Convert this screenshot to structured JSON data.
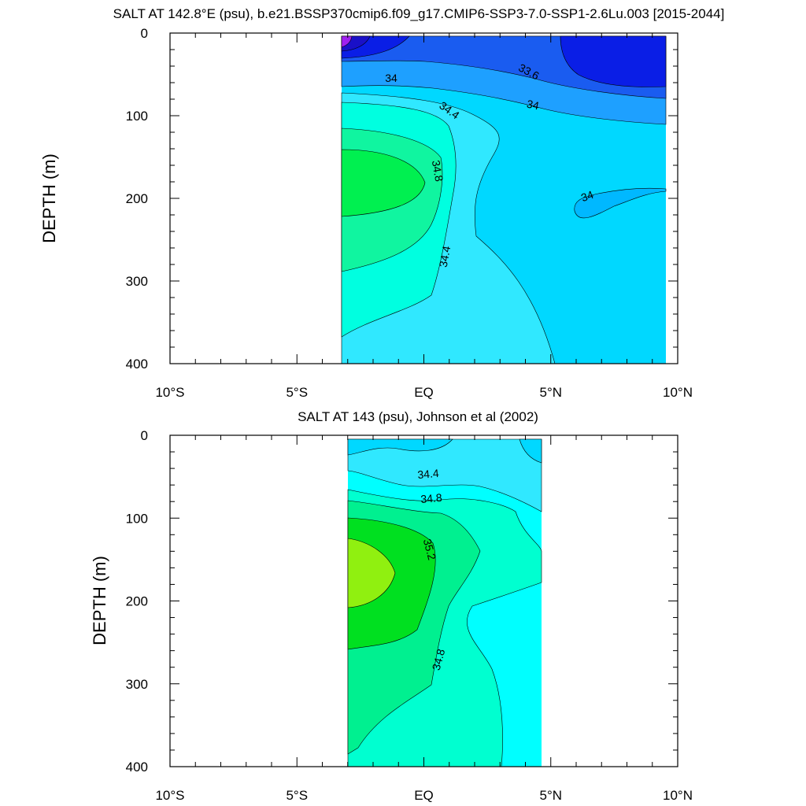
{
  "chart_data": [
    {
      "type": "contour",
      "title": "SALT AT 142.8°E (psu), b.e21.BSSP370cmip6.f09_g17.CMIP6-SSP3-7.0-SSP1-2.6Lu.003 [2015-2044]",
      "xlabel": "",
      "ylabel": "DEPTH (m)",
      "xlim": [
        -10,
        10
      ],
      "ylim": [
        400,
        0
      ],
      "xticks": [
        -10,
        -5,
        0,
        5,
        10
      ],
      "xticklabels": [
        "10°S",
        "5°S",
        "EQ",
        "5°N",
        "10°N"
      ],
      "yticks": [
        0,
        100,
        200,
        300,
        400
      ],
      "yticklabels": [
        "0",
        "100",
        "200",
        "300",
        "400"
      ],
      "data_extent": {
        "lon": [
          -3.1,
          10
        ],
        "depth": [
          5,
          400
        ]
      },
      "contour_labels": [
        "34",
        "33.6",
        "34.4",
        "34",
        "34.8",
        "34",
        "34.4"
      ],
      "color_levels": [
        {
          "range": "< 33.2",
          "color": "#a020f0"
        },
        {
          "range": "33.2-33.4",
          "color": "#1a10c8"
        },
        {
          "range": "33.4-33.6",
          "color": "#0a1ee6"
        },
        {
          "range": "33.6-33.8",
          "color": "#1a5cf0"
        },
        {
          "range": "33.8-34.0",
          "color": "#1ea0ff"
        },
        {
          "range": "34.0-34.2",
          "color": "#00b8ff"
        },
        {
          "range": "34.2-34.4",
          "color": "#00d8ff"
        },
        {
          "range": "34.4-34.6",
          "color": "#30e8ff"
        },
        {
          "range": "34.6-34.8",
          "color": "#00ffe0"
        },
        {
          "range": "34.8-35.0",
          "color": "#10f5a0"
        },
        {
          "range": "35.0-35.2",
          "color": "#00f050"
        }
      ]
    },
    {
      "type": "contour",
      "title": "SALT AT 143 (psu), Johnson et al (2002)",
      "xlabel": "",
      "ylabel": "DEPTH (m)",
      "xlim": [
        -10,
        10
      ],
      "ylim": [
        400,
        0
      ],
      "xticks": [
        -10,
        -5,
        0,
        5,
        10
      ],
      "xticklabels": [
        "10°S",
        "5°S",
        "EQ",
        "5°N",
        "10°N"
      ],
      "yticks": [
        0,
        100,
        200,
        300,
        400
      ],
      "yticklabels": [
        "0",
        "100",
        "200",
        "300",
        "400"
      ],
      "data_extent": {
        "lon": [
          -2.8,
          5
        ],
        "depth": [
          5,
          400
        ]
      },
      "contour_labels": [
        "34.4",
        "34.8",
        "35.2",
        "34.8"
      ],
      "color_levels": [
        {
          "range": "34.2-34.4",
          "color": "#00d8ff"
        },
        {
          "range": "34.4-34.6",
          "color": "#30e8ff"
        },
        {
          "range": "34.6-34.8",
          "color": "#00ffff"
        },
        {
          "range": "34.8-35.0",
          "color": "#00ffd0"
        },
        {
          "range": "35.0-35.2",
          "color": "#00f090"
        },
        {
          "range": "35.2-35.4",
          "color": "#00e020"
        },
        {
          "range": "> 35.4",
          "color": "#90f010"
        }
      ]
    }
  ]
}
